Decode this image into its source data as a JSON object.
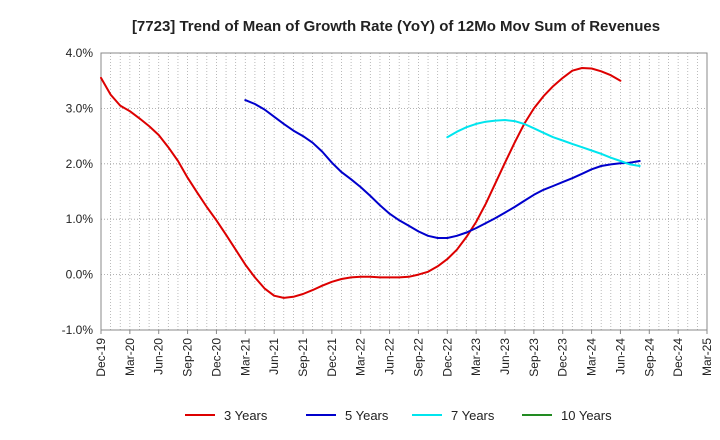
{
  "chart_data": {
    "type": "line",
    "title": "[7723]  Trend of Mean of Growth Rate (YoY) of 12Mo Mov Sum of Revenues",
    "xlabel": "",
    "ylabel": "",
    "ylim": [
      -1.0,
      4.0
    ],
    "y_ticks": [
      {
        "value": 4.0,
        "label": "4.0%"
      },
      {
        "value": 3.0,
        "label": "3.0%"
      },
      {
        "value": 2.0,
        "label": "2.0%"
      },
      {
        "value": 1.0,
        "label": "1.0%"
      },
      {
        "value": 0.0,
        "label": "0.0%"
      },
      {
        "value": -1.0,
        "label": "-1.0%"
      }
    ],
    "x_ticks": [
      "Dec-19",
      "Mar-20",
      "Jun-20",
      "Sep-20",
      "Dec-20",
      "Mar-21",
      "Jun-21",
      "Sep-21",
      "Dec-21",
      "Mar-22",
      "Jun-22",
      "Sep-22",
      "Dec-22",
      "Mar-23",
      "Jun-23",
      "Sep-23",
      "Dec-23",
      "Mar-24",
      "Jun-24",
      "Sep-24",
      "Dec-24",
      "Mar-25"
    ],
    "grid": true,
    "legend_position": "bottom",
    "series": [
      {
        "name": "3 Years",
        "color": "#dd0000",
        "points": [
          [
            0,
            3.55
          ],
          [
            1,
            3.25
          ],
          [
            2,
            3.05
          ],
          [
            3,
            2.95
          ],
          [
            4,
            2.82
          ],
          [
            5,
            2.68
          ],
          [
            6,
            2.52
          ],
          [
            7,
            2.3
          ],
          [
            8,
            2.05
          ],
          [
            9,
            1.75
          ],
          [
            10,
            1.48
          ],
          [
            11,
            1.22
          ],
          [
            12,
            0.98
          ],
          [
            13,
            0.72
          ],
          [
            14,
            0.45
          ],
          [
            15,
            0.18
          ],
          [
            16,
            -0.05
          ],
          [
            17,
            -0.25
          ],
          [
            18,
            -0.38
          ],
          [
            19,
            -0.42
          ],
          [
            20,
            -0.4
          ],
          [
            21,
            -0.35
          ],
          [
            22,
            -0.28
          ],
          [
            23,
            -0.2
          ],
          [
            24,
            -0.13
          ],
          [
            25,
            -0.08
          ],
          [
            26,
            -0.05
          ],
          [
            27,
            -0.04
          ],
          [
            28,
            -0.04
          ],
          [
            29,
            -0.05
          ],
          [
            30,
            -0.05
          ],
          [
            31,
            -0.05
          ],
          [
            32,
            -0.04
          ],
          [
            33,
            0.0
          ],
          [
            34,
            0.05
          ],
          [
            35,
            0.15
          ],
          [
            36,
            0.28
          ],
          [
            37,
            0.45
          ],
          [
            38,
            0.68
          ],
          [
            39,
            0.95
          ],
          [
            40,
            1.28
          ],
          [
            41,
            1.65
          ],
          [
            42,
            2.02
          ],
          [
            43,
            2.38
          ],
          [
            44,
            2.72
          ],
          [
            45,
            3.0
          ],
          [
            46,
            3.22
          ],
          [
            47,
            3.4
          ],
          [
            48,
            3.55
          ],
          [
            49,
            3.68
          ],
          [
            50,
            3.73
          ],
          [
            51,
            3.72
          ],
          [
            52,
            3.67
          ],
          [
            53,
            3.6
          ],
          [
            54,
            3.5
          ]
        ]
      },
      {
        "name": "5 Years",
        "color": "#0000cc",
        "points": [
          [
            15,
            3.15
          ],
          [
            16,
            3.08
          ],
          [
            17,
            2.98
          ],
          [
            18,
            2.85
          ],
          [
            19,
            2.72
          ],
          [
            20,
            2.6
          ],
          [
            21,
            2.5
          ],
          [
            22,
            2.38
          ],
          [
            23,
            2.22
          ],
          [
            24,
            2.02
          ],
          [
            25,
            1.85
          ],
          [
            26,
            1.72
          ],
          [
            27,
            1.58
          ],
          [
            28,
            1.42
          ],
          [
            29,
            1.25
          ],
          [
            30,
            1.1
          ],
          [
            31,
            0.98
          ],
          [
            32,
            0.88
          ],
          [
            33,
            0.78
          ],
          [
            34,
            0.7
          ],
          [
            35,
            0.66
          ],
          [
            36,
            0.66
          ],
          [
            37,
            0.7
          ],
          [
            38,
            0.76
          ],
          [
            39,
            0.84
          ],
          [
            40,
            0.93
          ],
          [
            41,
            1.02
          ],
          [
            42,
            1.12
          ],
          [
            43,
            1.22
          ],
          [
            44,
            1.33
          ],
          [
            45,
            1.44
          ],
          [
            46,
            1.53
          ],
          [
            47,
            1.6
          ],
          [
            48,
            1.67
          ],
          [
            49,
            1.74
          ],
          [
            50,
            1.82
          ],
          [
            51,
            1.9
          ],
          [
            52,
            1.96
          ],
          [
            53,
            1.99
          ],
          [
            54,
            2.01
          ],
          [
            55,
            2.02
          ],
          [
            56,
            2.05
          ]
        ]
      },
      {
        "name": "7 Years",
        "color": "#00e5ee",
        "points": [
          [
            36,
            2.48
          ],
          [
            37,
            2.58
          ],
          [
            38,
            2.66
          ],
          [
            39,
            2.72
          ],
          [
            40,
            2.76
          ],
          [
            41,
            2.78
          ],
          [
            42,
            2.79
          ],
          [
            43,
            2.77
          ],
          [
            44,
            2.72
          ],
          [
            45,
            2.64
          ],
          [
            46,
            2.56
          ],
          [
            47,
            2.48
          ],
          [
            48,
            2.42
          ],
          [
            49,
            2.36
          ],
          [
            50,
            2.3
          ],
          [
            51,
            2.24
          ],
          [
            52,
            2.18
          ],
          [
            53,
            2.11
          ],
          [
            54,
            2.05
          ],
          [
            55,
            1.99
          ],
          [
            56,
            1.96
          ]
        ]
      },
      {
        "name": "10 Years",
        "color": "#228b22",
        "points": []
      }
    ]
  }
}
